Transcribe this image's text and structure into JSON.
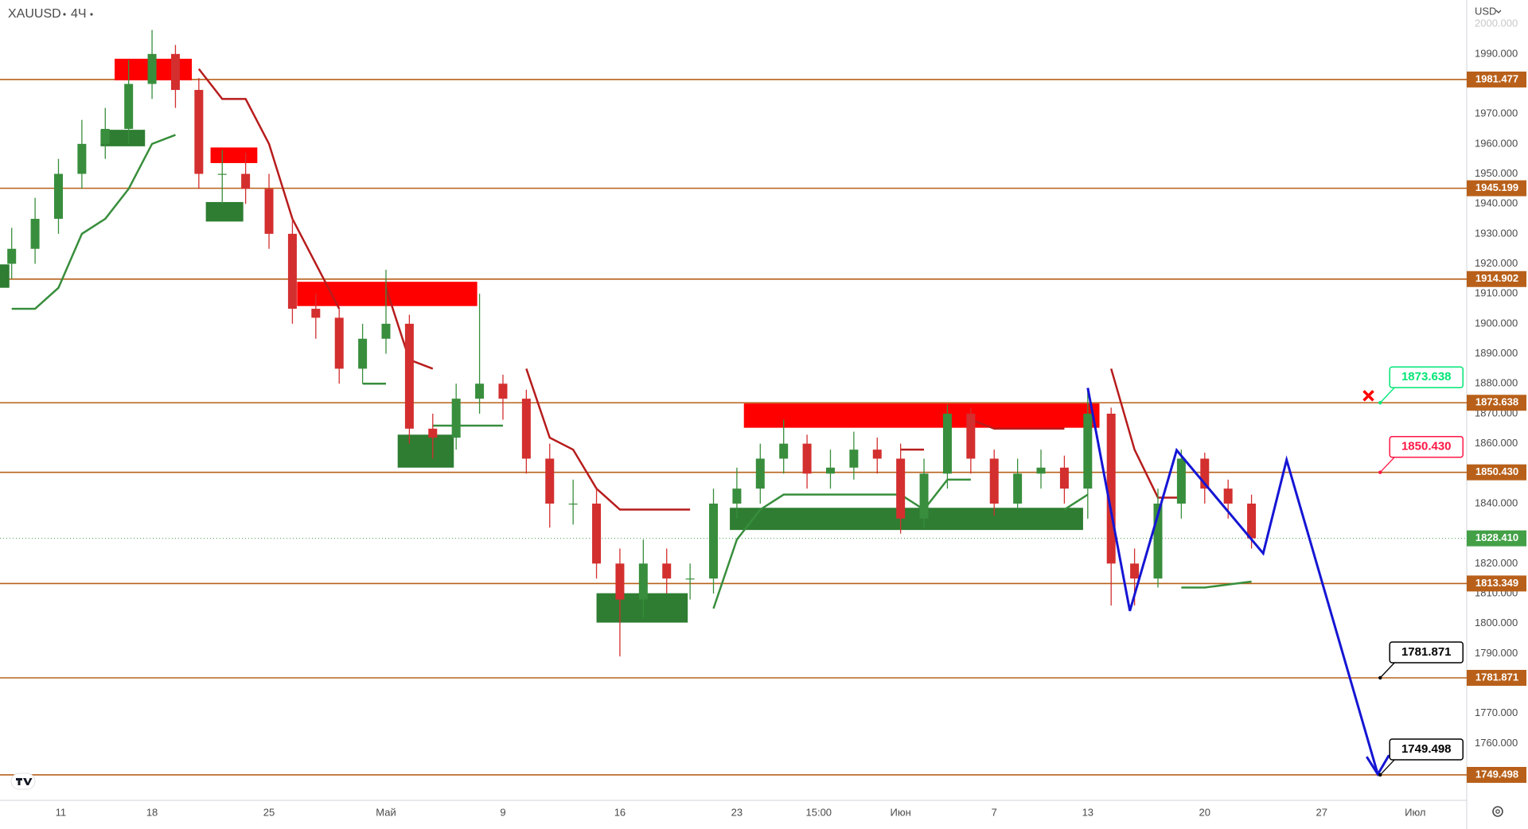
{
  "chart_data": {
    "type": "candlestick",
    "symbol": "XAUUSD",
    "interval": "4Ч",
    "currency": "USD",
    "xlim": [
      0,
      62.7
    ],
    "ylim": [
      1741,
      2008
    ],
    "grid": false,
    "xticks": [
      {
        "value": 2.6,
        "label": "11"
      },
      {
        "value": 6.5,
        "label": "18"
      },
      {
        "value": 11.5,
        "label": "25"
      },
      {
        "value": 16.5,
        "label": "Май"
      },
      {
        "value": 21.5,
        "label": "9"
      },
      {
        "value": 26.5,
        "label": "16"
      },
      {
        "value": 31.5,
        "label": "23"
      },
      {
        "value": 35,
        "label": "15:00"
      },
      {
        "value": 38.5,
        "label": "Июн"
      },
      {
        "value": 42.5,
        "label": "7"
      },
      {
        "value": 46.5,
        "label": "13"
      },
      {
        "value": 51.5,
        "label": "20"
      },
      {
        "value": 56.5,
        "label": "27"
      },
      {
        "value": 60.5,
        "label": "Июл"
      }
    ],
    "yticks": [
      {
        "value": 2000,
        "label": "2000.000"
      },
      {
        "value": 1990,
        "label": "1990.000"
      },
      {
        "value": 1970,
        "label": "1970.000"
      },
      {
        "value": 1960,
        "label": "1960.000"
      },
      {
        "value": 1950,
        "label": "1950.000"
      },
      {
        "value": 1940,
        "label": "1940.000"
      },
      {
        "value": 1930,
        "label": "1930.000"
      },
      {
        "value": 1920,
        "label": "1920.000"
      },
      {
        "value": 1910,
        "label": "1910.000"
      },
      {
        "value": 1900,
        "label": "1900.000"
      },
      {
        "value": 1890,
        "label": "1890.000"
      },
      {
        "value": 1880,
        "label": "1880.000"
      },
      {
        "value": 1870,
        "label": "1870.000"
      },
      {
        "value": 1860,
        "label": "1860.000"
      },
      {
        "value": 1840,
        "label": "1840.000"
      },
      {
        "value": 1820,
        "label": "1820.000"
      },
      {
        "value": 1810,
        "label": "1810.000"
      },
      {
        "value": 1800,
        "label": "1800.000"
      },
      {
        "value": 1790,
        "label": "1790.000"
      },
      {
        "value": 1770,
        "label": "1770.000"
      },
      {
        "value": 1760,
        "label": "1760.000"
      }
    ],
    "up_color": "#388e3c",
    "down_color": "#d32f2f",
    "x": [
      0.5,
      1.5,
      2.5,
      3.5,
      4.5,
      5.5,
      6.5,
      7.5,
      8.5,
      9.5,
      10.5,
      11.5,
      12.5,
      13.5,
      14.5,
      15.5,
      16.5,
      17.5,
      18.5,
      19.5,
      20.5,
      21.5,
      22.5,
      23.5,
      24.5,
      25.5,
      26.5,
      27.5,
      28.5,
      29.5,
      30.5,
      31.5,
      32.5,
      33.5,
      34.5,
      35.5,
      36.5,
      37.5,
      38.5,
      39.5,
      40.5,
      41.5,
      42.5,
      43.5,
      44.5,
      45.5,
      46.5,
      47.5,
      48.5,
      49.5,
      50.5,
      51.5,
      52.5,
      53.5
    ],
    "open": [
      1920,
      1925,
      1935,
      1950,
      1960,
      1965,
      1980,
      1990,
      1978,
      1950,
      1950,
      1945,
      1930,
      1905,
      1902,
      1885,
      1895,
      1900,
      1865,
      1862,
      1875,
      1880,
      1875,
      1855,
      1840,
      1840,
      1820,
      1808,
      1820,
      1815,
      1815,
      1840,
      1845,
      1855,
      1860,
      1850,
      1852,
      1858,
      1855,
      1835,
      1850,
      1870,
      1855,
      1840,
      1850,
      1852,
      1845,
      1870,
      1820,
      1815,
      1840,
      1855,
      1845,
      1840
    ],
    "high": [
      1932,
      1942,
      1955,
      1968,
      1972,
      1988,
      1998,
      1993,
      1982,
      1958,
      1957,
      1950,
      1935,
      1910,
      1905,
      1900,
      1918,
      1903,
      1870,
      1880,
      1910,
      1883,
      1878,
      1860,
      1848,
      1845,
      1825,
      1828,
      1825,
      1820,
      1845,
      1852,
      1860,
      1868,
      1863,
      1858,
      1864,
      1862,
      1860,
      1855,
      1873,
      1872,
      1858,
      1855,
      1858,
      1856,
      1878,
      1872,
      1825,
      1845,
      1858,
      1857,
      1848,
      1843
    ],
    "low": [
      1915,
      1920,
      1930,
      1945,
      1955,
      1960,
      1975,
      1972,
      1945,
      1940,
      1940,
      1925,
      1900,
      1895,
      1880,
      1880,
      1890,
      1860,
      1855,
      1858,
      1870,
      1868,
      1850,
      1832,
      1833,
      1815,
      1789,
      1802,
      1810,
      1808,
      1810,
      1835,
      1840,
      1850,
      1845,
      1845,
      1848,
      1850,
      1830,
      1832,
      1845,
      1850,
      1836,
      1838,
      1845,
      1840,
      1835,
      1806,
      1806,
      1812,
      1835,
      1840,
      1835,
      1825
    ],
    "close": [
      1925,
      1935,
      1950,
      1960,
      1965,
      1980,
      1990,
      1978,
      1950,
      1950,
      1945,
      1930,
      1905,
      1902,
      1885,
      1895,
      1900,
      1865,
      1862,
      1875,
      1880,
      1875,
      1855,
      1840,
      1840,
      1820,
      1808,
      1820,
      1815,
      1815,
      1840,
      1845,
      1855,
      1860,
      1850,
      1852,
      1858,
      1855,
      1835,
      1850,
      1870,
      1855,
      1840,
      1850,
      1852,
      1845,
      1870,
      1820,
      1815,
      1840,
      1855,
      1845,
      1840,
      1828.41
    ],
    "trend_lines": [
      {
        "color": "#388e3c",
        "values": [
          1905,
          1905,
          1912,
          1930,
          1935,
          1945,
          1960,
          1963,
          null,
          null,
          null,
          null,
          null,
          null,
          null,
          1880,
          1880,
          null,
          1866,
          1866,
          1866,
          1866,
          null,
          null,
          null,
          null,
          null,
          null,
          null,
          null,
          1805,
          1828,
          1838,
          1843,
          1843,
          1843,
          1843,
          1843,
          1843,
          1838,
          1848,
          1848,
          null,
          null,
          null,
          1838,
          1843,
          null,
          null,
          null,
          1812,
          1812,
          1813,
          1814
        ]
      },
      {
        "color": "#b71c1c",
        "values": [
          null,
          null,
          null,
          null,
          null,
          null,
          null,
          null,
          1985,
          1975,
          1975,
          1960,
          1935,
          1920,
          1905,
          null,
          1912,
          1888,
          1885,
          null,
          null,
          null,
          1885,
          1862,
          1858,
          1845,
          1838,
          1838,
          1838,
          1838,
          null,
          null,
          null,
          null,
          null,
          null,
          null,
          null,
          1858,
          1858,
          null,
          1868,
          1865,
          1865,
          1865,
          1865,
          null,
          1885,
          1858,
          1842,
          1842,
          null,
          null,
          null
        ]
      }
    ],
    "zones": [
      {
        "color": "#ff0000",
        "x": [
          4.9,
          8.2
        ],
        "y": [
          1981.2,
          1988.4
        ]
      },
      {
        "color": "#2e7d32",
        "x": [
          4.3,
          6.2
        ],
        "y": [
          1959.2,
          1964.7
        ]
      },
      {
        "color": "#ff0000",
        "x": [
          9.0,
          11.0
        ],
        "y": [
          1953.6,
          1958.8
        ]
      },
      {
        "color": "#2e7d32",
        "x": [
          8.8,
          10.4
        ],
        "y": [
          1934.1,
          1940.6
        ]
      },
      {
        "color": "#2e7d32",
        "x": [
          0,
          0.4
        ],
        "y": [
          1912,
          1919.8
        ]
      },
      {
        "color": "#ff0000",
        "x": [
          12.7,
          20.4
        ],
        "y": [
          1905.9,
          1914
        ]
      },
      {
        "color": "#2e7d32",
        "x": [
          17.0,
          19.4
        ],
        "y": [
          1852,
          1863
        ]
      },
      {
        "color": "#ff0000",
        "x": [
          31.8,
          47.0
        ],
        "y": [
          1865.3,
          1873.4
        ]
      },
      {
        "color": "#2e7d32",
        "x": [
          31.2,
          46.3
        ],
        "y": [
          1831.2,
          1838.6
        ]
      },
      {
        "color": "#2e7d32",
        "x": [
          25.5,
          29.4
        ],
        "y": [
          1800.3,
          1810.1
        ]
      }
    ],
    "level_color": "#b8601a",
    "levels": [
      {
        "value": 1981.477,
        "label": "1981.477"
      },
      {
        "value": 1945.199,
        "label": "1945.199"
      },
      {
        "value": 1914.902,
        "label": "1914.902"
      },
      {
        "value": 1873.638,
        "label": "1873.638"
      },
      {
        "value": 1850.43,
        "label": "1850.430"
      },
      {
        "value": 1813.349,
        "label": "1813.349"
      },
      {
        "value": 1781.871,
        "label": "1781.871"
      },
      {
        "value": 1749.498,
        "label": "1749.498"
      }
    ],
    "last_price": {
      "value": 1828.41,
      "label": "1828.410",
      "color": "#43a047"
    },
    "callout_x": 59.0,
    "callouts": [
      {
        "value": 1873.638,
        "label": "1873.638",
        "color": "#00e676"
      },
      {
        "value": 1850.43,
        "label": "1850.430",
        "color": "#ff1744"
      },
      {
        "value": 1781.871,
        "label": "1781.871",
        "color": "#000000"
      },
      {
        "value": 1749.498,
        "label": "1749.498",
        "color": "#000000"
      }
    ],
    "projection": {
      "color": "#1515d4",
      "x": [
        46.5,
        48.3,
        50.3,
        54.0,
        55.0,
        58.9
      ],
      "values": [
        1878.6,
        1804.2,
        1857.8,
        1823.4,
        1854.6,
        1749.7
      ]
    },
    "cross": {
      "color": "#ff0000",
      "x": 58.5,
      "y": 1876
    }
  }
}
